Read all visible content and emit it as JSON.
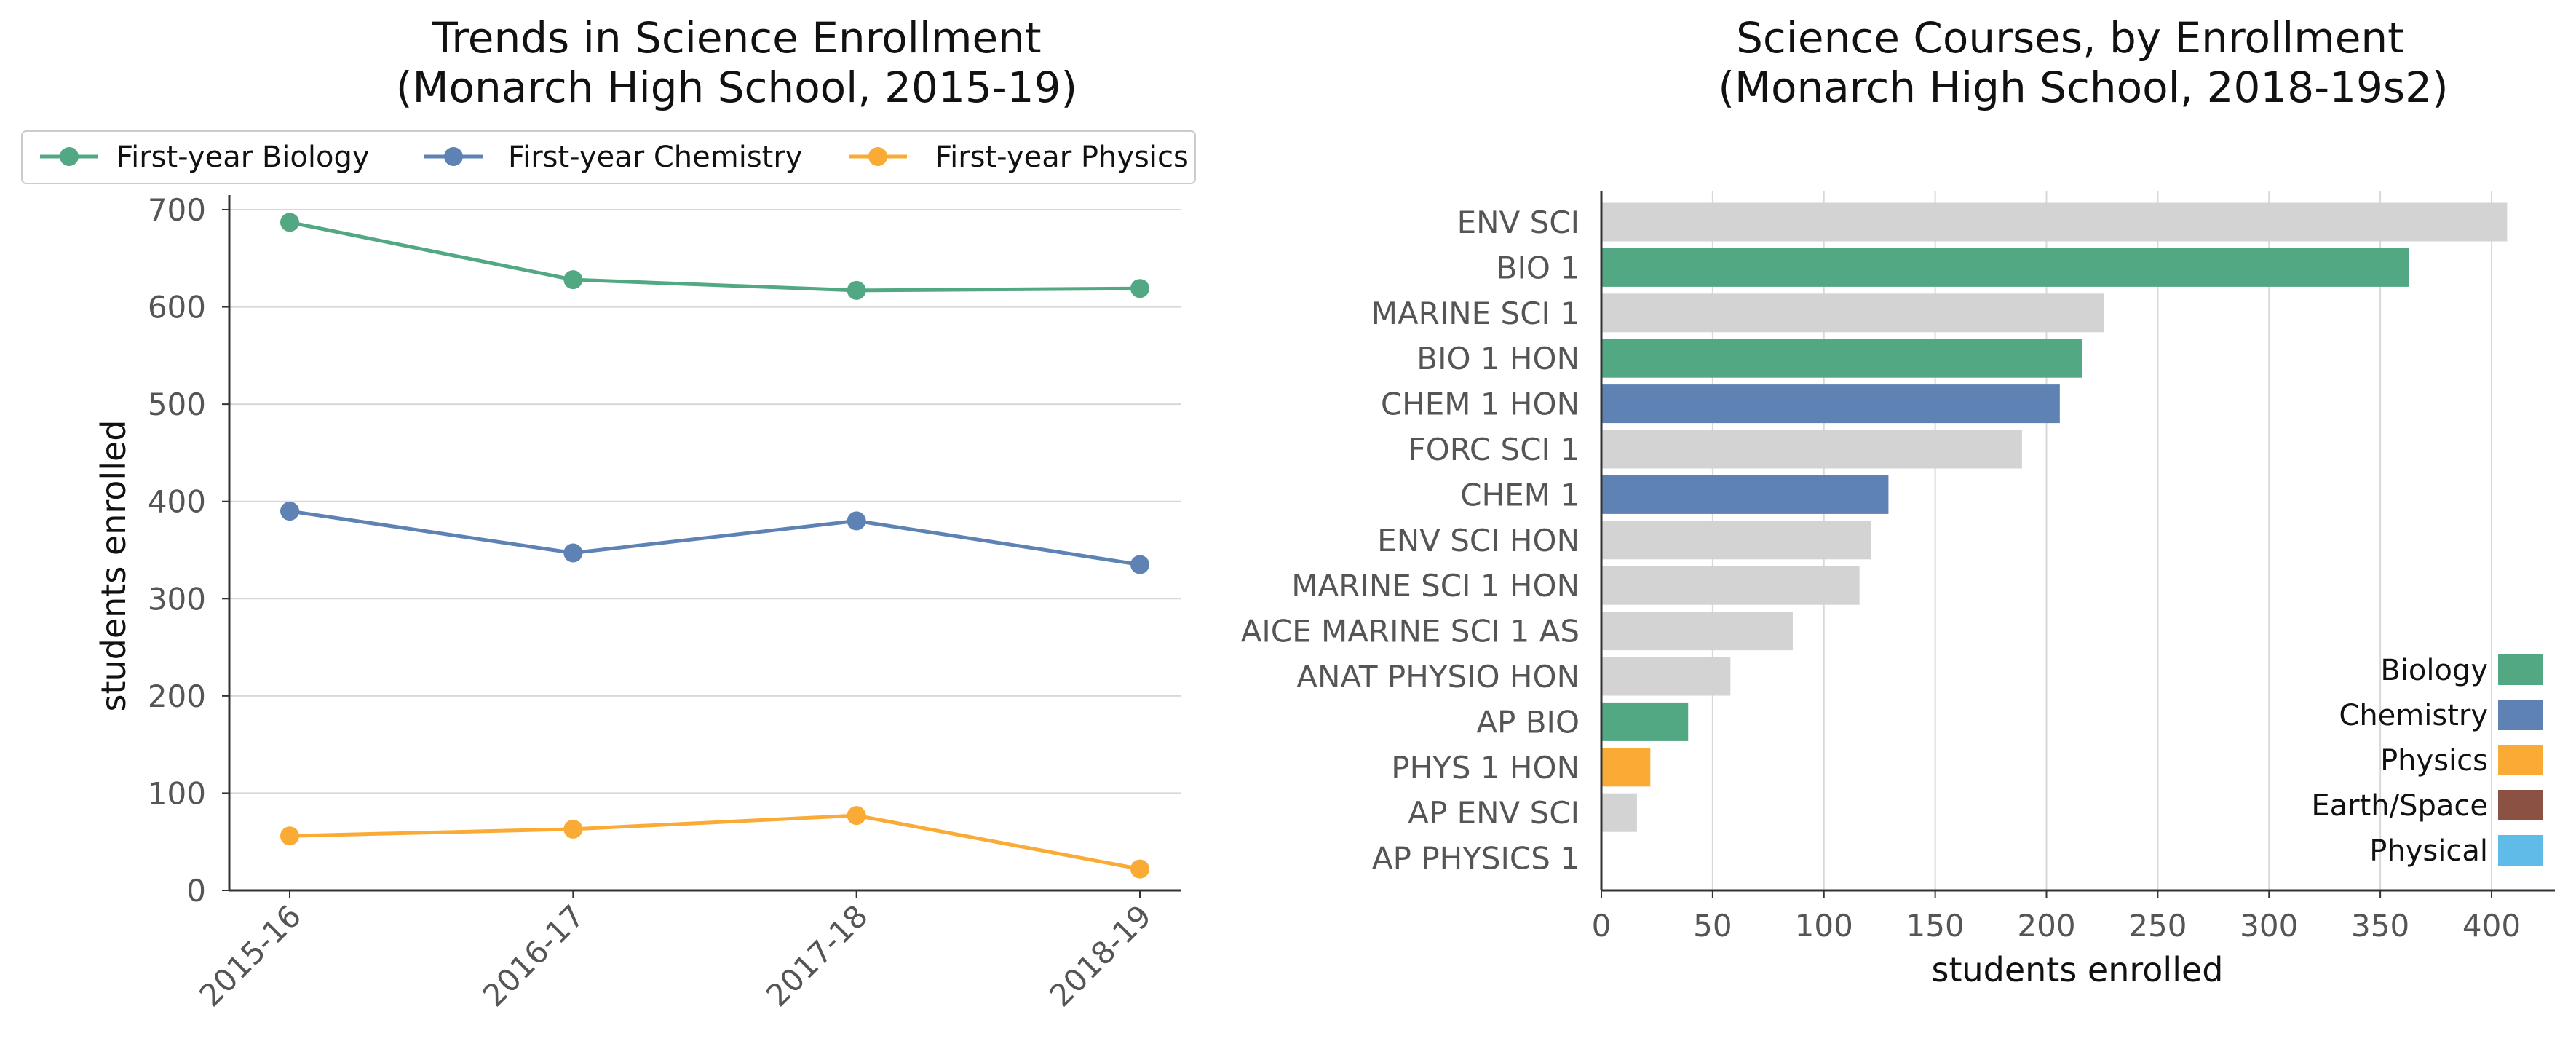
{
  "colors": {
    "biology": "#53a884",
    "chemistry": "#5f82b4",
    "physics": "#faab35",
    "earth_space": "#8b5142",
    "physical": "#5fbbe8",
    "other": "#d3d3d3"
  },
  "chart_data": [
    {
      "type": "line",
      "title_line1": "Trends in Science Enrollment",
      "title_line2": "(Monarch High School, 2015-19)",
      "xlabel": "",
      "ylabel": "students enrolled",
      "ylim": [
        0,
        700
      ],
      "yticks": [
        0,
        100,
        200,
        300,
        400,
        500,
        600,
        700
      ],
      "categories": [
        "2015-16",
        "2016-17",
        "2017-18",
        "2018-19"
      ],
      "legend_position": "top",
      "grid": "horizontal",
      "series": [
        {
          "name": "First-year Biology",
          "color": "#53a884",
          "values": [
            687,
            628,
            617,
            619
          ]
        },
        {
          "name": "First-year Chemistry",
          "color": "#5f82b4",
          "values": [
            390,
            347,
            380,
            335
          ]
        },
        {
          "name": "First-year Physics",
          "color": "#faab35",
          "values": [
            56,
            63,
            77,
            22
          ]
        }
      ]
    },
    {
      "type": "bar",
      "orientation": "horizontal",
      "title_line1": "Science Courses, by Enrollment",
      "title_line2": "(Monarch High School, 2018-19s2)",
      "xlabel": "students enrolled",
      "ylabel": "",
      "xlim": [
        0,
        420
      ],
      "xticks": [
        0,
        50,
        100,
        150,
        200,
        250,
        300,
        350,
        400
      ],
      "grid": "vertical",
      "legend_position": "lower-right",
      "legend": [
        {
          "name": "Biology",
          "color": "#53a884"
        },
        {
          "name": "Chemistry",
          "color": "#5f82b4"
        },
        {
          "name": "Physics",
          "color": "#faab35"
        },
        {
          "name": "Earth/Space",
          "color": "#8b5142"
        },
        {
          "name": "Physical",
          "color": "#5fbbe8"
        }
      ],
      "bars": [
        {
          "label": "ENV SCI",
          "value": 407,
          "color": "#d3d3d3"
        },
        {
          "label": "BIO 1",
          "value": 363,
          "color": "#53a884"
        },
        {
          "label": "MARINE SCI 1",
          "value": 226,
          "color": "#d3d3d3"
        },
        {
          "label": "BIO 1 HON",
          "value": 216,
          "color": "#53a884"
        },
        {
          "label": "CHEM 1 HON",
          "value": 206,
          "color": "#5f82b4"
        },
        {
          "label": "FORC SCI 1",
          "value": 189,
          "color": "#d3d3d3"
        },
        {
          "label": "CHEM 1",
          "value": 129,
          "color": "#5f82b4"
        },
        {
          "label": "ENV SCI HON",
          "value": 121,
          "color": "#d3d3d3"
        },
        {
          "label": "MARINE SCI 1 HON",
          "value": 116,
          "color": "#d3d3d3"
        },
        {
          "label": "AICE MARINE SCI 1 AS",
          "value": 86,
          "color": "#d3d3d3"
        },
        {
          "label": "ANAT PHYSIO HON",
          "value": 58,
          "color": "#d3d3d3"
        },
        {
          "label": "AP BIO",
          "value": 39,
          "color": "#53a884"
        },
        {
          "label": "PHYS 1 HON",
          "value": 22,
          "color": "#faab35"
        },
        {
          "label": "AP ENV SCI",
          "value": 16,
          "color": "#d3d3d3"
        },
        {
          "label": "AP PHYSICS 1",
          "value": 0,
          "color": "#d3d3d3"
        }
      ]
    }
  ]
}
